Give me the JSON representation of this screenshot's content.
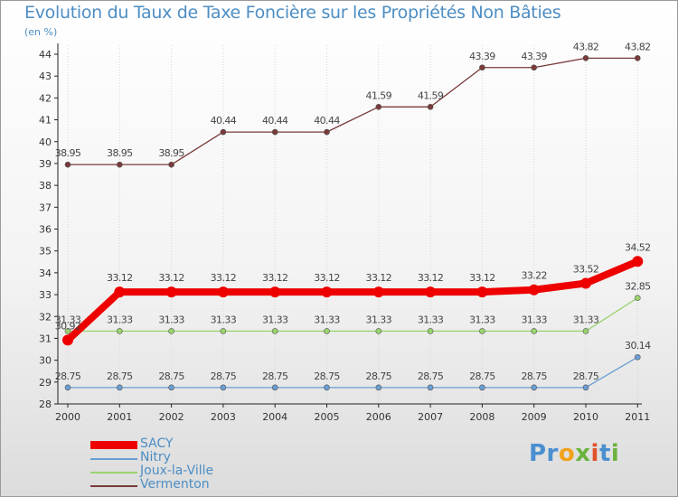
{
  "chart_data": {
    "type": "line",
    "title": "Evolution du Taux de Taxe Foncière sur les Propriétés Non Bâties",
    "ylabel": "(en %)",
    "xlabel": "",
    "categories": [
      "2000",
      "2001",
      "2002",
      "2003",
      "2004",
      "2005",
      "2006",
      "2007",
      "2008",
      "2009",
      "2010",
      "2011"
    ],
    "ylim": [
      28,
      44
    ],
    "yticks": [
      "28",
      "29",
      "30",
      "31",
      "32",
      "33",
      "34",
      "35",
      "36",
      "37",
      "38",
      "39",
      "40",
      "41",
      "42",
      "43",
      "44"
    ],
    "series": [
      {
        "name": "SACY",
        "color": "#ee0000",
        "values": [
          30.92,
          33.12,
          33.12,
          33.12,
          33.12,
          33.12,
          33.12,
          33.12,
          33.12,
          33.22,
          33.52,
          34.52
        ],
        "labels": [
          "30.92",
          "33.12",
          "33.12",
          "33.12",
          "33.12",
          "33.12",
          "33.12",
          "33.12",
          "33.12",
          "33.22",
          "33.52",
          "34.52"
        ]
      },
      {
        "name": "Nitry",
        "color": "#6a9ed3",
        "values": [
          28.75,
          28.75,
          28.75,
          28.75,
          28.75,
          28.75,
          28.75,
          28.75,
          28.75,
          28.75,
          28.75,
          30.14
        ],
        "labels": [
          "28.75",
          "28.75",
          "28.75",
          "28.75",
          "28.75",
          "28.75",
          "28.75",
          "28.75",
          "28.75",
          "28.75",
          "28.75",
          "30.14"
        ]
      },
      {
        "name": "Joux-la-Ville",
        "color": "#9bd36f",
        "values": [
          31.33,
          31.33,
          31.33,
          31.33,
          31.33,
          31.33,
          31.33,
          31.33,
          31.33,
          31.33,
          31.33,
          32.85
        ],
        "labels": [
          "31.33",
          "31.33",
          "31.33",
          "31.33",
          "31.33",
          "31.33",
          "31.33",
          "31.33",
          "31.33",
          "31.33",
          "31.33",
          "32.85"
        ]
      },
      {
        "name": "Vermenton",
        "color": "#7a3a3a",
        "values": [
          38.95,
          38.95,
          38.95,
          40.44,
          40.44,
          40.44,
          41.59,
          41.59,
          43.39,
          43.39,
          43.82,
          43.82
        ],
        "labels": [
          "38.95",
          "38.95",
          "38.95",
          "40.44",
          "40.44",
          "40.44",
          "41.59",
          "41.59",
          "43.39",
          "43.39",
          "43.82",
          "43.82"
        ]
      }
    ]
  },
  "legend": {
    "items": [
      {
        "label": "SACY",
        "color": "#ee0000"
      },
      {
        "label": "Nitry",
        "color": "#6a9ed3"
      },
      {
        "label": "Joux-la-Ville",
        "color": "#9bd36f"
      },
      {
        "label": "Vermenton",
        "color": "#7a3a3a"
      }
    ]
  },
  "logo": {
    "text": "Proxiti"
  }
}
